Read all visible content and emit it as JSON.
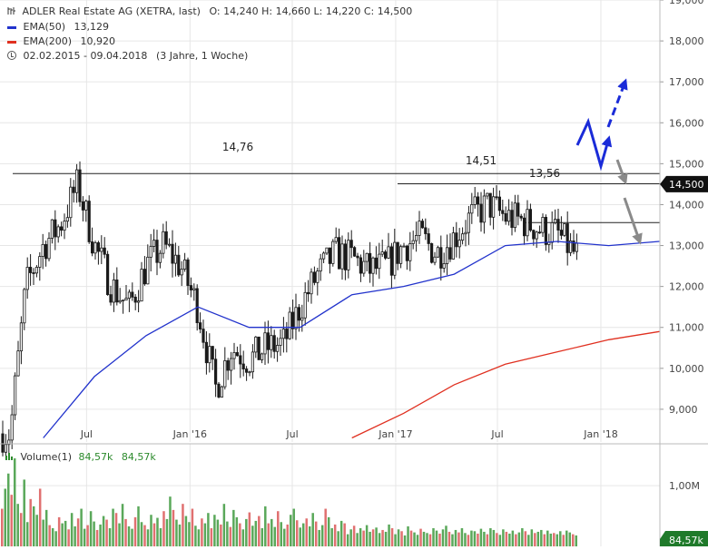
{
  "header": {
    "instrument": "ADLER Real Estate AG (XETRA, last)",
    "ohlc": "O: 14,240  H: 14,660  L: 14,220  C: 14,500",
    "ema50_label": "EMA(50)",
    "ema50_value": "13,129",
    "ema200_label": "EMA(200)",
    "ema200_value": "10,920",
    "period": "02.02.2015 - 09.04.2018",
    "period_note": "(3 Jahre, 1 Woche)"
  },
  "volume_header": {
    "label": "Volume(1)",
    "value1": "84,57k",
    "value2": "84,57k"
  },
  "colors": {
    "up": "#5aa85a",
    "down": "#e07070",
    "candle": "#1a1a1a",
    "ema50": "#2233cc",
    "ema200": "#e03020",
    "price_tag": "#111111",
    "volume_tag": "#1f7a2a",
    "blue_arrow": "#1a2bd8",
    "grey_arrow": "#8a8a8a"
  },
  "chart_data": [
    {
      "type": "line",
      "name": "price",
      "y_axis_ticks": [
        "9,000",
        "10,000",
        "11,000",
        "12,000",
        "13,000",
        "14,000",
        "15,000",
        "16,000",
        "17,000",
        "18,000",
        "19,000"
      ],
      "x_axis_ticks": [
        "Jul",
        "Jan '16",
        "Jul",
        "Jan '17",
        "Jul",
        "Jan '18"
      ],
      "ylim": [
        8.2,
        19.0
      ],
      "price_tag": "14,500",
      "annotations": [
        "14,76",
        "14,51",
        "13,56"
      ],
      "levels": [
        14.76,
        14.51,
        13.56
      ],
      "series": [
        {
          "name": "ADLER Real Estate AG",
          "x": [
            "2015-02",
            "2015-03",
            "2015-04",
            "2015-05",
            "2015-06",
            "2015-07",
            "2015-08",
            "2015-09",
            "2015-10",
            "2015-11",
            "2015-12",
            "2016-01",
            "2016-02",
            "2016-03",
            "2016-04",
            "2016-05",
            "2016-06",
            "2016-07",
            "2016-08",
            "2016-09",
            "2016-10",
            "2016-11",
            "2016-12",
            "2017-01",
            "2017-02",
            "2017-03",
            "2017-04",
            "2017-05",
            "2017-06",
            "2017-07",
            "2017-08",
            "2017-09",
            "2017-10",
            "2017-11",
            "2017-12",
            "2018-01",
            "2018-02",
            "2018-03",
            "2018-04"
          ],
          "values": [
            8.4,
            12.0,
            13.0,
            13.5,
            14.5,
            13.0,
            12.0,
            11.5,
            12.5,
            13.0,
            12.5,
            11.5,
            9.5,
            10.5,
            10.2,
            10.5,
            10.6,
            11.5,
            12.3,
            12.8,
            12.7,
            12.4,
            12.5,
            13.0,
            13.2,
            12.8,
            13.2,
            13.7,
            14.0,
            13.7,
            13.6,
            13.4,
            13.3,
            12.8,
            12.6,
            13.2,
            12.8,
            13.4,
            14.5
          ]
        },
        {
          "name": "EMA(50)",
          "x": [
            "2015-04",
            "2015-07",
            "2015-10",
            "2016-01",
            "2016-04",
            "2016-07",
            "2016-10",
            "2017-01",
            "2017-04",
            "2017-07",
            "2017-10",
            "2018-01",
            "2018-04"
          ],
          "values": [
            8.3,
            9.8,
            10.8,
            11.5,
            11.0,
            11.0,
            11.8,
            12.0,
            12.3,
            13.0,
            13.1,
            13.0,
            13.1
          ]
        },
        {
          "name": "EMA(200)",
          "x": [
            "2016-10",
            "2017-01",
            "2017-04",
            "2017-07",
            "2017-10",
            "2018-01",
            "2018-04"
          ],
          "values": [
            8.3,
            8.9,
            9.6,
            10.1,
            10.4,
            10.7,
            10.9
          ]
        }
      ]
    },
    {
      "type": "bar",
      "name": "volume",
      "y_axis_ticks": [
        "1,00M"
      ],
      "volume_tag": "84,57k",
      "ylim": [
        0,
        1.6
      ],
      "values": [
        0.62,
        0.95,
        1.2,
        0.85,
        1.45,
        0.7,
        0.55,
        1.1,
        0.4,
        0.78,
        0.66,
        0.52,
        0.95,
        0.44,
        0.6,
        0.35,
        0.3,
        0.25,
        0.48,
        0.38,
        0.42,
        0.28,
        0.55,
        0.33,
        0.46,
        0.62,
        0.29,
        0.35,
        0.58,
        0.41,
        0.27,
        0.36,
        0.5,
        0.44,
        0.3,
        0.62,
        0.55,
        0.38,
        0.7,
        0.45,
        0.33,
        0.29,
        0.48,
        0.66,
        0.4,
        0.35,
        0.28,
        0.52,
        0.38,
        0.47,
        0.3,
        0.58,
        0.45,
        0.82,
        0.6,
        0.44,
        0.36,
        0.7,
        0.5,
        0.4,
        0.62,
        0.34,
        0.28,
        0.46,
        0.38,
        0.55,
        0.3,
        0.52,
        0.44,
        0.36,
        0.7,
        0.41,
        0.32,
        0.6,
        0.48,
        0.38,
        0.28,
        0.45,
        0.56,
        0.34,
        0.42,
        0.5,
        0.3,
        0.66,
        0.38,
        0.45,
        0.32,
        0.58,
        0.4,
        0.29,
        0.36,
        0.52,
        0.62,
        0.43,
        0.31,
        0.38,
        0.46,
        0.33,
        0.55,
        0.41,
        0.27,
        0.35,
        0.62,
        0.48,
        0.3,
        0.36,
        0.25,
        0.42,
        0.38,
        0.2,
        0.28,
        0.34,
        0.22,
        0.3,
        0.26,
        0.35,
        0.24,
        0.28,
        0.31,
        0.22,
        0.27,
        0.24,
        0.36,
        0.3,
        0.2,
        0.28,
        0.25,
        0.18,
        0.33,
        0.26,
        0.23,
        0.19,
        0.29,
        0.24,
        0.22,
        0.2,
        0.3,
        0.26,
        0.21,
        0.28,
        0.34,
        0.24,
        0.2,
        0.27,
        0.23,
        0.3,
        0.22,
        0.19,
        0.26,
        0.25,
        0.21,
        0.29,
        0.24,
        0.2,
        0.3,
        0.27,
        0.22,
        0.19,
        0.28,
        0.24,
        0.21,
        0.26,
        0.2,
        0.23,
        0.3,
        0.25,
        0.19,
        0.28,
        0.22,
        0.24,
        0.27,
        0.2,
        0.26,
        0.21,
        0.22,
        0.2,
        0.25,
        0.19,
        0.26,
        0.23,
        0.2,
        0.18
      ],
      "up_down": "alternating green/red by candle direction"
    }
  ]
}
